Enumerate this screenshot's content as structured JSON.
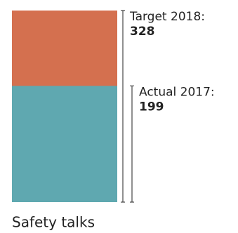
{
  "chart_data": {
    "type": "bar",
    "categories": [
      "Safety talks"
    ],
    "series": [
      {
        "name": "Target 2018:",
        "color": "#d4704f",
        "values": [
          328
        ]
      },
      {
        "name": "Actual 2017:",
        "color": "#5fa8b0",
        "values": [
          199
        ]
      }
    ]
  }
}
